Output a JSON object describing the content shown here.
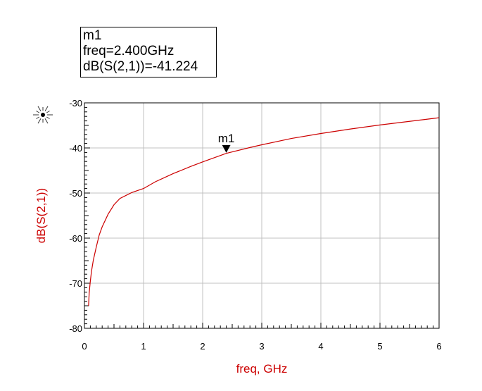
{
  "marker_box": {
    "name": "m1",
    "freq_line": "freq=2.400GHz",
    "value_line": "dB(S(2,1))=-41.224"
  },
  "chart_data": {
    "type": "line",
    "xlabel": "freq, GHz",
    "ylabel": "dB(S(2,1))",
    "xlim": [
      0,
      6
    ],
    "ylim": [
      -80,
      -30
    ],
    "xticks": [
      0,
      1,
      2,
      3,
      4,
      5,
      6
    ],
    "yticks": [
      -30,
      -40,
      -50,
      -60,
      -70,
      -80
    ],
    "grid": true,
    "series": [
      {
        "color": "#cc0000",
        "x": [
          0.07,
          0.08,
          0.1,
          0.12,
          0.15,
          0.2,
          0.25,
          0.3,
          0.4,
          0.5,
          0.6,
          0.8,
          1.0,
          1.2,
          1.5,
          1.8,
          2.0,
          2.4,
          2.8,
          3.0,
          3.5,
          4.0,
          4.5,
          5.0,
          5.5,
          6.0
        ],
        "y": [
          -75.0,
          -72.2,
          -69.5,
          -67.3,
          -64.9,
          -62.0,
          -59.3,
          -57.5,
          -54.7,
          -52.6,
          -51.2,
          -49.9,
          -49.0,
          -47.5,
          -45.7,
          -44.1,
          -43.1,
          -41.2,
          -39.9,
          -39.3,
          -37.9,
          -36.8,
          -35.8,
          -34.9,
          -34.1,
          -33.3
        ]
      }
    ],
    "markers": [
      {
        "label": "m1",
        "x": 2.4,
        "y": -41.224
      }
    ]
  },
  "colors": {
    "trace": "#cc0000",
    "grid": "#c0c0c0",
    "axis_title": "#cc0000"
  },
  "icons": {
    "corner": "sunburst-icon"
  }
}
